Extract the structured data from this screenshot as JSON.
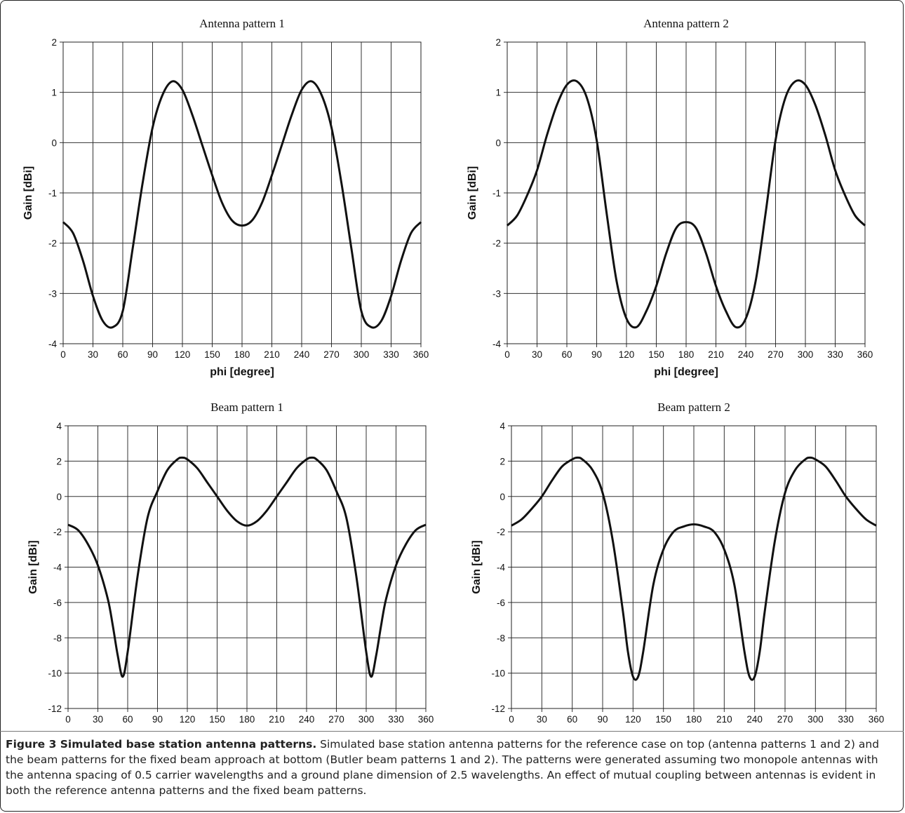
{
  "chart_data": [
    {
      "type": "line",
      "title": "Antenna pattern 1",
      "xlabel": "phi [degree]",
      "ylabel": "Gain [dBi]",
      "xlim": [
        0,
        360
      ],
      "ylim": [
        -4,
        2
      ],
      "xticks": [
        "0",
        "30",
        "60",
        "90",
        "120",
        "150",
        "180",
        "210",
        "240",
        "270",
        "300",
        "330",
        "360"
      ],
      "yticks": [
        "-4",
        "-3",
        "-2",
        "-1",
        "0",
        "1",
        "2"
      ],
      "grid": true,
      "x": [
        0,
        10,
        20,
        30,
        40,
        50,
        60,
        70,
        80,
        90,
        100,
        110,
        120,
        130,
        140,
        150,
        160,
        170,
        180,
        190,
        200,
        210,
        220,
        230,
        240,
        250,
        260,
        270,
        280,
        290,
        300,
        310,
        320,
        330,
        340,
        350,
        360
      ],
      "series": [
        {
          "values": [
            -1.58,
            -1.8,
            -2.35,
            -3.05,
            -3.55,
            -3.67,
            -3.35,
            -2.1,
            -0.8,
            0.3,
            0.95,
            1.22,
            1.05,
            0.55,
            -0.05,
            -0.65,
            -1.2,
            -1.55,
            -1.65,
            -1.55,
            -1.2,
            -0.65,
            -0.05,
            0.55,
            1.05,
            1.22,
            0.95,
            0.3,
            -0.8,
            -2.1,
            -3.35,
            -3.67,
            -3.55,
            -3.05,
            -2.35,
            -1.8,
            -1.58
          ]
        }
      ]
    },
    {
      "type": "line",
      "title": "Antenna pattern 2",
      "xlabel": "phi [degree]",
      "ylabel": "Gain [dBi]",
      "xlim": [
        0,
        360
      ],
      "ylim": [
        -4,
        2
      ],
      "xticks": [
        "0",
        "30",
        "60",
        "90",
        "120",
        "150",
        "180",
        "210",
        "240",
        "270",
        "300",
        "330",
        "360"
      ],
      "yticks": [
        "-4",
        "-3",
        "-2",
        "-1",
        "0",
        "1",
        "2"
      ],
      "grid": true,
      "x": [
        0,
        10,
        20,
        30,
        40,
        50,
        60,
        70,
        80,
        90,
        100,
        110,
        120,
        130,
        140,
        150,
        160,
        170,
        180,
        190,
        200,
        210,
        220,
        230,
        240,
        250,
        260,
        270,
        280,
        290,
        300,
        310,
        320,
        330,
        340,
        350,
        360
      ],
      "series": [
        {
          "values": [
            -1.65,
            -1.45,
            -1.05,
            -0.55,
            0.15,
            0.75,
            1.15,
            1.22,
            0.9,
            0.05,
            -1.4,
            -2.75,
            -3.5,
            -3.67,
            -3.35,
            -2.85,
            -2.2,
            -1.7,
            -1.58,
            -1.7,
            -2.2,
            -2.85,
            -3.35,
            -3.67,
            -3.5,
            -2.75,
            -1.4,
            0.05,
            0.9,
            1.22,
            1.15,
            0.75,
            0.15,
            -0.55,
            -1.05,
            -1.45,
            -1.65
          ]
        }
      ]
    },
    {
      "type": "line",
      "title": "Beam pattern 1",
      "xlabel": "phi [degree]",
      "ylabel": "Gain [dBi]",
      "xlim": [
        0,
        360
      ],
      "ylim": [
        -12,
        4
      ],
      "xticks": [
        "0",
        "30",
        "60",
        "90",
        "120",
        "150",
        "180",
        "210",
        "240",
        "270",
        "300",
        "330",
        "360"
      ],
      "yticks": [
        "-12",
        "-10",
        "-8",
        "-6",
        "-4",
        "-2",
        "0",
        "2",
        "4"
      ],
      "grid": true,
      "x": [
        0,
        10,
        20,
        30,
        40,
        45,
        50,
        55,
        60,
        70,
        80,
        90,
        100,
        110,
        115,
        120,
        130,
        140,
        150,
        160,
        170,
        180,
        190,
        200,
        210,
        220,
        230,
        240,
        245,
        250,
        260,
        270,
        280,
        290,
        300,
        305,
        310,
        315,
        320,
        330,
        340,
        350,
        360
      ],
      "series": [
        {
          "values": [
            -1.6,
            -1.9,
            -2.7,
            -3.9,
            -5.8,
            -7.3,
            -9.0,
            -10.2,
            -8.8,
            -4.5,
            -1.2,
            0.3,
            1.5,
            2.1,
            2.2,
            2.1,
            1.6,
            0.8,
            0.0,
            -0.8,
            -1.4,
            -1.65,
            -1.4,
            -0.8,
            0.0,
            0.8,
            1.6,
            2.1,
            2.2,
            2.1,
            1.5,
            0.3,
            -1.2,
            -4.5,
            -8.8,
            -10.2,
            -9.0,
            -7.3,
            -5.8,
            -3.9,
            -2.7,
            -1.9,
            -1.6
          ]
        }
      ]
    },
    {
      "type": "line",
      "title": "Beam pattern 2",
      "xlabel": "phi [degree]",
      "ylabel": "Gain [dBi]",
      "xlim": [
        0,
        360
      ],
      "ylim": [
        -12,
        4
      ],
      "xticks": [
        "0",
        "30",
        "60",
        "90",
        "120",
        "150",
        "180",
        "210",
        "240",
        "270",
        "300",
        "330",
        "360"
      ],
      "yticks": [
        "-12",
        "-10",
        "-8",
        "-6",
        "-4",
        "-2",
        "0",
        "2",
        "4"
      ],
      "grid": true,
      "x": [
        0,
        10,
        20,
        30,
        40,
        50,
        60,
        65,
        70,
        80,
        90,
        100,
        110,
        115,
        120,
        125,
        130,
        140,
        150,
        160,
        170,
        180,
        190,
        200,
        210,
        220,
        230,
        235,
        240,
        245,
        250,
        260,
        270,
        280,
        290,
        295,
        300,
        310,
        320,
        330,
        340,
        350,
        360
      ],
      "series": [
        {
          "values": [
            -1.65,
            -1.3,
            -0.7,
            0.0,
            0.9,
            1.7,
            2.1,
            2.2,
            2.1,
            1.5,
            0.2,
            -2.5,
            -6.5,
            -8.8,
            -10.2,
            -10.2,
            -8.8,
            -5.0,
            -3.0,
            -2.0,
            -1.7,
            -1.58,
            -1.7,
            -2.0,
            -3.0,
            -5.0,
            -8.8,
            -10.2,
            -10.2,
            -8.8,
            -6.5,
            -2.5,
            0.2,
            1.5,
            2.1,
            2.2,
            2.1,
            1.7,
            0.9,
            0.0,
            -0.7,
            -1.3,
            -1.65
          ]
        }
      ]
    }
  ],
  "caption": {
    "label": "Figure 3 Simulated base station antenna patterns.",
    "text": " Simulated base station antenna patterns for the reference case on top (antenna patterns 1 and 2) and the beam patterns for the fixed beam approach at bottom (Butler beam patterns 1 and 2). The patterns were generated assuming two monopole antennas with the antenna spacing of 0.5 carrier wavelengths and a ground plane dimension of 2.5 wavelengths. An effect of mutual coupling between antennas is evident in both the reference antenna patterns and the fixed beam patterns."
  }
}
